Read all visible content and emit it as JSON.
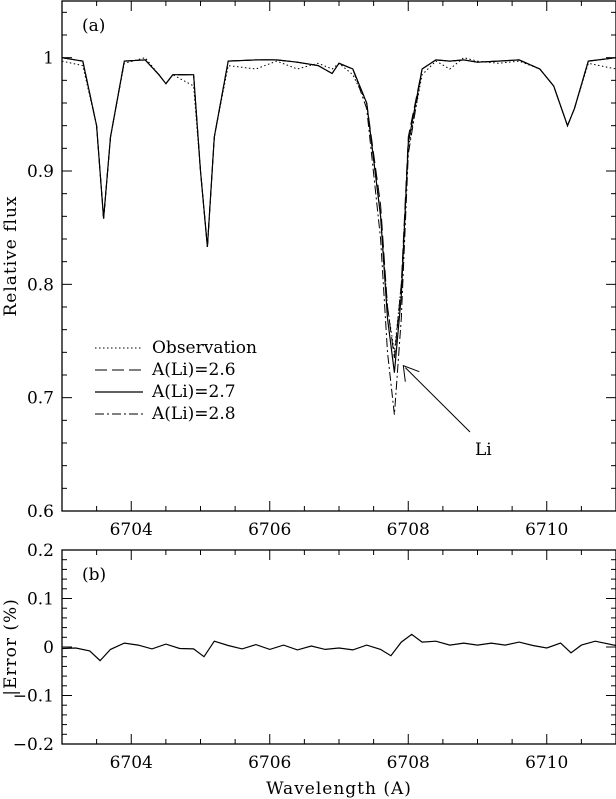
{
  "chart_data": [
    {
      "type": "line",
      "panel_label": "(a)",
      "xlabel": "",
      "ylabel": "Relative flux",
      "xlim": [
        6703,
        6711
      ],
      "ylim": [
        0.6,
        1.05
      ],
      "x_ticks": [
        6704,
        6706,
        6708,
        6710
      ],
      "x_tick_labels": [
        "6704",
        "6706",
        "6708",
        "6710"
      ],
      "y_ticks": [
        0.6,
        0.7,
        0.8,
        0.9,
        1.0
      ],
      "y_tick_labels": [
        "0.6",
        "0.7",
        "0.8",
        "0.9",
        "1"
      ],
      "legend_placement": "middle-left",
      "annotation": {
        "text": "Li",
        "arrow_to": [
          6707.9,
          0.73
        ],
        "label_at": [
          6708.9,
          0.63
        ]
      },
      "series": [
        {
          "name": "Observation",
          "style": "dotted",
          "x": [
            6703.0,
            6703.3,
            6703.5,
            6703.6,
            6703.7,
            6703.9,
            6704.2,
            6704.4,
            6704.5,
            6704.6,
            6704.9,
            6705.0,
            6705.1,
            6705.2,
            6705.4,
            6705.8,
            6706.1,
            6706.4,
            6706.7,
            6706.9,
            6707.0,
            6707.2,
            6707.4,
            6707.6,
            6707.7,
            6707.8,
            6707.9,
            6708.0,
            6708.2,
            6708.4,
            6708.6,
            6708.8,
            6709.0,
            6709.3,
            6709.6,
            6709.9,
            6710.1,
            6710.3,
            6710.4,
            6710.6,
            6711.0
          ],
          "y": [
            0.997,
            0.993,
            0.94,
            0.858,
            0.93,
            0.995,
            1.0,
            0.985,
            0.977,
            0.985,
            0.975,
            0.9,
            0.833,
            0.93,
            0.993,
            0.99,
            0.997,
            0.99,
            0.995,
            0.99,
            0.995,
            0.985,
            0.96,
            0.86,
            0.78,
            0.74,
            0.8,
            0.92,
            0.985,
            0.997,
            0.99,
            1.0,
            0.997,
            0.995,
            0.997,
            0.99,
            0.975,
            0.94,
            0.955,
            0.995,
            0.99
          ]
        },
        {
          "name": "A(Li)=2.6",
          "style": "dashed",
          "x": [
            6703.0,
            6703.3,
            6703.5,
            6703.6,
            6703.7,
            6703.9,
            6704.2,
            6704.4,
            6704.5,
            6704.6,
            6704.9,
            6705.0,
            6705.1,
            6705.2,
            6705.4,
            6705.8,
            6706.1,
            6706.4,
            6706.7,
            6706.9,
            6707.0,
            6707.2,
            6707.4,
            6707.6,
            6707.7,
            6707.8,
            6707.9,
            6708.0,
            6708.2,
            6708.4,
            6708.6,
            6708.8,
            6709.0,
            6709.3,
            6709.6,
            6709.9,
            6710.1,
            6710.3,
            6710.4,
            6710.6,
            6711.0
          ],
          "y": [
            1.0,
            0.997,
            0.94,
            0.858,
            0.93,
            0.997,
            0.998,
            0.985,
            0.977,
            0.985,
            0.985,
            0.9,
            0.833,
            0.93,
            0.997,
            0.998,
            0.998,
            0.996,
            0.993,
            0.986,
            0.995,
            0.99,
            0.96,
            0.87,
            0.78,
            0.735,
            0.8,
            0.93,
            0.99,
            0.998,
            0.997,
            0.998,
            0.996,
            0.997,
            0.998,
            0.99,
            0.975,
            0.94,
            0.955,
            0.997,
            1.0
          ]
        },
        {
          "name": "A(Li)=2.7",
          "style": "solid",
          "x": [
            6703.0,
            6703.3,
            6703.5,
            6703.6,
            6703.7,
            6703.9,
            6704.2,
            6704.4,
            6704.5,
            6704.6,
            6704.9,
            6705.0,
            6705.1,
            6705.2,
            6705.4,
            6705.8,
            6706.1,
            6706.4,
            6706.7,
            6706.9,
            6707.0,
            6707.2,
            6707.4,
            6707.6,
            6707.7,
            6707.8,
            6707.9,
            6708.0,
            6708.2,
            6708.4,
            6708.6,
            6708.8,
            6709.0,
            6709.3,
            6709.6,
            6709.9,
            6710.1,
            6710.3,
            6710.4,
            6710.6,
            6711.0
          ],
          "y": [
            1.0,
            0.997,
            0.94,
            0.858,
            0.93,
            0.997,
            0.998,
            0.985,
            0.977,
            0.985,
            0.985,
            0.9,
            0.833,
            0.93,
            0.997,
            0.998,
            0.998,
            0.996,
            0.993,
            0.986,
            0.995,
            0.99,
            0.96,
            0.86,
            0.77,
            0.722,
            0.79,
            0.925,
            0.99,
            0.998,
            0.997,
            0.998,
            0.996,
            0.997,
            0.998,
            0.99,
            0.975,
            0.94,
            0.955,
            0.997,
            1.0
          ]
        },
        {
          "name": "A(Li)=2.8",
          "style": "dash-dot",
          "x": [
            6703.0,
            6703.3,
            6703.5,
            6703.6,
            6703.7,
            6703.9,
            6704.2,
            6704.4,
            6704.5,
            6704.6,
            6704.9,
            6705.0,
            6705.1,
            6705.2,
            6705.4,
            6705.8,
            6706.1,
            6706.4,
            6706.7,
            6706.9,
            6707.0,
            6707.2,
            6707.4,
            6707.6,
            6707.7,
            6707.8,
            6707.9,
            6708.0,
            6708.2,
            6708.4,
            6708.6,
            6708.8,
            6709.0,
            6709.3,
            6709.6,
            6709.9,
            6710.1,
            6710.3,
            6710.4,
            6710.6,
            6711.0
          ],
          "y": [
            1.0,
            0.997,
            0.94,
            0.858,
            0.93,
            0.997,
            0.998,
            0.985,
            0.977,
            0.985,
            0.985,
            0.9,
            0.833,
            0.93,
            0.997,
            0.998,
            0.998,
            0.996,
            0.993,
            0.986,
            0.995,
            0.99,
            0.955,
            0.84,
            0.74,
            0.685,
            0.77,
            0.915,
            0.99,
            0.998,
            0.997,
            0.998,
            0.996,
            0.997,
            0.998,
            0.99,
            0.975,
            0.94,
            0.955,
            0.997,
            1.0
          ]
        }
      ]
    },
    {
      "type": "line",
      "panel_label": "(b)",
      "xlabel": "Wavelength (A)",
      "ylabel": "|Error (%)",
      "xlim": [
        6703,
        6711
      ],
      "ylim": [
        -0.2,
        0.2
      ],
      "x_ticks": [
        6704,
        6706,
        6708,
        6710
      ],
      "x_tick_labels": [
        "6704",
        "6706",
        "6708",
        "6710"
      ],
      "y_ticks": [
        -0.2,
        -0.1,
        0,
        0.1,
        0.2
      ],
      "y_tick_labels": [
        "−0.2",
        "−0.1",
        "0",
        "0.1",
        "0.2"
      ],
      "series": [
        {
          "style": "solid",
          "x": [
            6703.0,
            6703.2,
            6703.4,
            6703.55,
            6703.7,
            6703.9,
            6704.1,
            6704.3,
            6704.5,
            6704.7,
            6704.9,
            6705.05,
            6705.2,
            6705.4,
            6705.6,
            6705.8,
            6706.0,
            6706.2,
            6706.4,
            6706.6,
            6706.8,
            6707.0,
            6707.2,
            6707.4,
            6707.6,
            6707.75,
            6707.9,
            6708.05,
            6708.2,
            6708.4,
            6708.6,
            6708.8,
            6709.0,
            6709.2,
            6709.4,
            6709.6,
            6709.8,
            6710.0,
            6710.2,
            6710.35,
            6710.5,
            6710.7,
            6711.0
          ],
          "y": [
            -0.003,
            -0.002,
            -0.008,
            -0.028,
            -0.005,
            0.008,
            0.004,
            -0.004,
            0.006,
            -0.003,
            -0.004,
            -0.02,
            0.012,
            0.003,
            -0.004,
            0.005,
            -0.005,
            0.004,
            -0.006,
            0.002,
            -0.005,
            -0.002,
            -0.006,
            0.004,
            -0.005,
            -0.018,
            0.01,
            0.026,
            0.01,
            0.012,
            0.004,
            0.008,
            0.004,
            0.008,
            0.004,
            0.01,
            0.003,
            -0.002,
            0.008,
            -0.012,
            0.004,
            0.012,
            0.003
          ]
        }
      ]
    }
  ]
}
